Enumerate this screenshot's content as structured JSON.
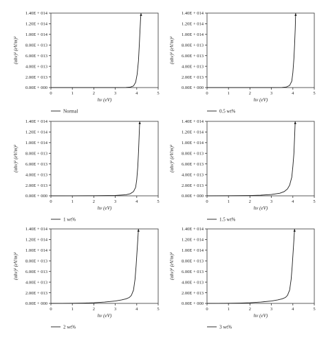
{
  "chart_data": [
    {
      "type": "line",
      "xlabel": "hv (eV)",
      "ylabel": "(αhv)² (eV/m)²",
      "x_ticks": [
        "0",
        "1",
        "2",
        "3",
        "4",
        "5"
      ],
      "y_ticks": [
        "0.00E + 000",
        "2.00E + 013",
        "4.00E + 013",
        "6.00E + 013",
        "8.00E + 013",
        "1.00E + 014",
        "1.20E + 014",
        "1.40E + 014"
      ],
      "xlim": [
        0,
        5
      ],
      "ylim": [
        0,
        140000000000000.0
      ],
      "series": [
        {
          "name": "Normal",
          "x": [
            0.0,
            1.0,
            2.0,
            3.0,
            3.5,
            3.7,
            3.85,
            3.95,
            4.02,
            4.08,
            4.12,
            4.15,
            4.18,
            4.2
          ],
          "y": [
            0,
            0,
            0,
            0,
            200000000000.0,
            800000000000.0,
            3000000000000.0,
            10000000000000.0,
            25000000000000.0,
            50000000000000.0,
            80000000000000.0,
            105000000000000.0,
            130000000000000.0,
            140000000000000.0
          ]
        }
      ]
    },
    {
      "type": "line",
      "xlabel": "hv (eV)",
      "ylabel": "(αhv)² (eV/m)²",
      "x_ticks": [
        "0",
        "1",
        "2",
        "3",
        "4",
        "5"
      ],
      "y_ticks": [
        "0.00E + 000",
        "2.00E + 013",
        "4.00E + 013",
        "6.00E + 013",
        "8.00E + 013",
        "1.00E + 014",
        "1.20E + 014",
        "1.40E + 014"
      ],
      "xlim": [
        0,
        5
      ],
      "ylim": [
        0,
        140000000000000.0
      ],
      "series": [
        {
          "name": "0.5 wt%",
          "x": [
            0.0,
            1.0,
            2.0,
            3.0,
            3.5,
            3.7,
            3.85,
            3.95,
            4.0,
            4.05,
            4.08,
            4.11,
            4.13
          ],
          "y": [
            0,
            0,
            0,
            0,
            300000000000.0,
            1000000000000.0,
            4000000000000.0,
            12000000000000.0,
            28000000000000.0,
            55000000000000.0,
            80000000000000.0,
            110000000000000.0,
            140000000000000.0
          ]
        }
      ]
    },
    {
      "type": "line",
      "xlabel": "hv (eV)",
      "ylabel": "(αhv)² (eV/m)²",
      "x_ticks": [
        "0",
        "1",
        "2",
        "3",
        "4",
        "5"
      ],
      "y_ticks": [
        "0.00E + 000",
        "2.00E + 013",
        "4.00E + 013",
        "6.00E + 013",
        "8.00E + 013",
        "1.00E + 014",
        "1.20E + 014",
        "1.40E + 014"
      ],
      "xlim": [
        0,
        5
      ],
      "ylim": [
        0,
        140000000000000.0
      ],
      "series": [
        {
          "name": "1 wt%",
          "x": [
            0.0,
            1.0,
            2.0,
            3.0,
            3.5,
            3.7,
            3.85,
            3.95,
            4.0,
            4.05,
            4.08,
            4.11,
            4.14
          ],
          "y": [
            0,
            100000000000.0,
            300000000000.0,
            700000000000.0,
            2000000000000.0,
            4000000000000.0,
            8000000000000.0,
            16000000000000.0,
            30000000000000.0,
            55000000000000.0,
            80000000000000.0,
            110000000000000.0,
            140000000000000.0
          ]
        }
      ]
    },
    {
      "type": "line",
      "xlabel": "hv (eV)",
      "ylabel": "(αhv)² (eV/m)²",
      "x_ticks": [
        "0",
        "1",
        "2",
        "3",
        "4",
        "5"
      ],
      "y_ticks": [
        "0.00E + 000",
        "2.00E + 013",
        "4.00E + 013",
        "6.00E + 013",
        "8.00E + 013",
        "1.00E + 014",
        "1.20E + 014",
        "1.40E + 014"
      ],
      "xlim": [
        0,
        5
      ],
      "ylim": [
        0,
        140000000000000.0
      ],
      "series": [
        {
          "name": "1.5 wt%",
          "x": [
            0.0,
            1.0,
            2.0,
            2.5,
            3.0,
            3.4,
            3.6,
            3.75,
            3.85,
            3.95,
            4.0,
            4.05,
            4.08,
            4.11
          ],
          "y": [
            0,
            200000000000.0,
            600000000000.0,
            1200000000000.0,
            2500000000000.0,
            5000000000000.0,
            8000000000000.0,
            13000000000000.0,
            20000000000000.0,
            35000000000000.0,
            55000000000000.0,
            80000000000000.0,
            110000000000000.0,
            140000000000000.0
          ]
        }
      ]
    },
    {
      "type": "line",
      "xlabel": "hv (eV)",
      "ylabel": "(αhv)² (eV/m)²",
      "x_ticks": [
        "0",
        "1",
        "2",
        "3",
        "4",
        "5"
      ],
      "y_ticks": [
        "0.00E + 000",
        "2.00E + 013",
        "4.00E + 013",
        "6.00E + 013",
        "8.00E + 013",
        "1.00E + 014",
        "1.20E + 014",
        "1.40E + 014"
      ],
      "xlim": [
        0,
        5
      ],
      "ylim": [
        0,
        140000000000000.0
      ],
      "series": [
        {
          "name": "2 wt%",
          "x": [
            0.0,
            0.5,
            1.0,
            1.5,
            2.0,
            2.5,
            3.0,
            3.3,
            3.5,
            3.65,
            3.75,
            3.85,
            3.92,
            3.97,
            4.01,
            4.05,
            4.08
          ],
          "y": [
            0,
            50000000000.0,
            200000000000.0,
            500000000000.0,
            1200000000000.0,
            2500000000000.0,
            4500000000000.0,
            6500000000000.0,
            8500000000000.0,
            11000000000000.0,
            15000000000000.0,
            25000000000000.0,
            45000000000000.0,
            70000000000000.0,
            95000000000000.0,
            120000000000000.0,
            140000000000000.0
          ]
        }
      ]
    },
    {
      "type": "line",
      "xlabel": "hv (eV)",
      "ylabel": "(αhv)² (eV/m)²",
      "x_ticks": [
        "0",
        "1",
        "2",
        "3",
        "4",
        "5"
      ],
      "y_ticks": [
        "0.00E + 000",
        "2.00E + 013",
        "4.00E + 013",
        "6.00E + 013",
        "8.00E + 013",
        "1.00E + 014",
        "1.20E + 014",
        "1.40E + 014"
      ],
      "xlim": [
        0,
        5
      ],
      "ylim": [
        0,
        140000000000000.0
      ],
      "series": [
        {
          "name": "3 wt%",
          "x": [
            0.0,
            0.5,
            1.0,
            1.5,
            2.0,
            2.5,
            3.0,
            3.3,
            3.5,
            3.65,
            3.75,
            3.85,
            3.92,
            3.97,
            4.01,
            4.05,
            4.08
          ],
          "y": [
            0,
            50000000000.0,
            200000000000.0,
            500000000000.0,
            1200000000000.0,
            2500000000000.0,
            4500000000000.0,
            6500000000000.0,
            8500000000000.0,
            11000000000000.0,
            15000000000000.0,
            25000000000000.0,
            45000000000000.0,
            70000000000000.0,
            95000000000000.0,
            120000000000000.0,
            140000000000000.0
          ]
        }
      ]
    }
  ]
}
